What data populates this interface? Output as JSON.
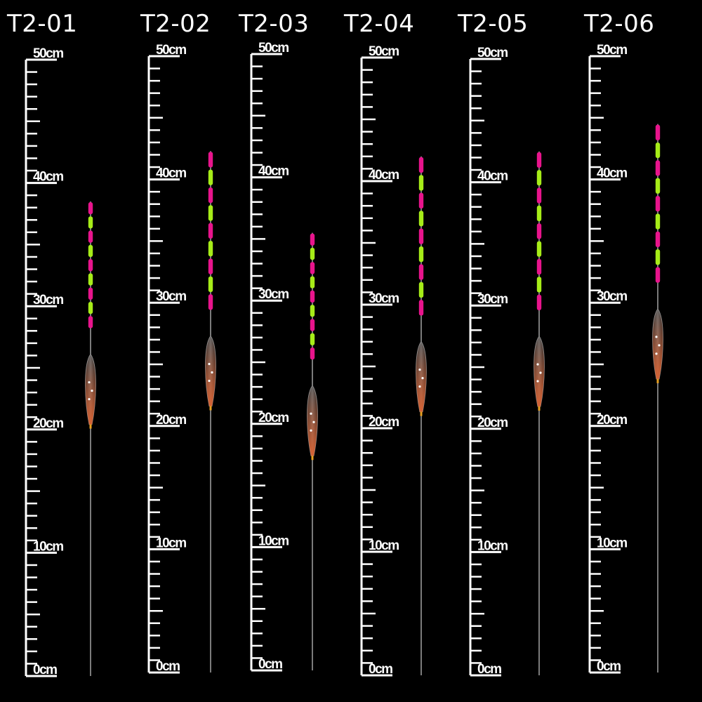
{
  "panels": [
    {
      "model": "T2-01",
      "float_top_cm": 38.5,
      "float_bottom_cm": 0
    },
    {
      "model": "T2-02",
      "float_top_cm": 42.3,
      "float_bottom_cm": 0
    },
    {
      "model": "T2-03",
      "float_top_cm": 35.5,
      "float_bottom_cm": 0
    },
    {
      "model": "T2-04",
      "float_top_cm": 42.0,
      "float_bottom_cm": 0
    },
    {
      "model": "T2-05",
      "float_top_cm": 42.5,
      "float_bottom_cm": 0
    },
    {
      "model": "T2-06",
      "float_top_cm": 44.5,
      "float_bottom_cm": 0
    }
  ],
  "ruler": {
    "labels": [
      {
        "cm": 50,
        "text": "50cm"
      },
      {
        "cm": 40,
        "text": "40cm"
      },
      {
        "cm": 30,
        "text": "30cm"
      },
      {
        "cm": 20,
        "text": "20cm"
      },
      {
        "cm": 10,
        "text": "10cm"
      },
      {
        "cm": 0,
        "text": "0cm"
      }
    ],
    "max_cm": 50
  },
  "colors": {
    "background": "#000000",
    "text": "#ffffff",
    "tip_pink": "#e8148c",
    "tip_green": "#a6ec18",
    "body_orange": "#e8622c"
  }
}
